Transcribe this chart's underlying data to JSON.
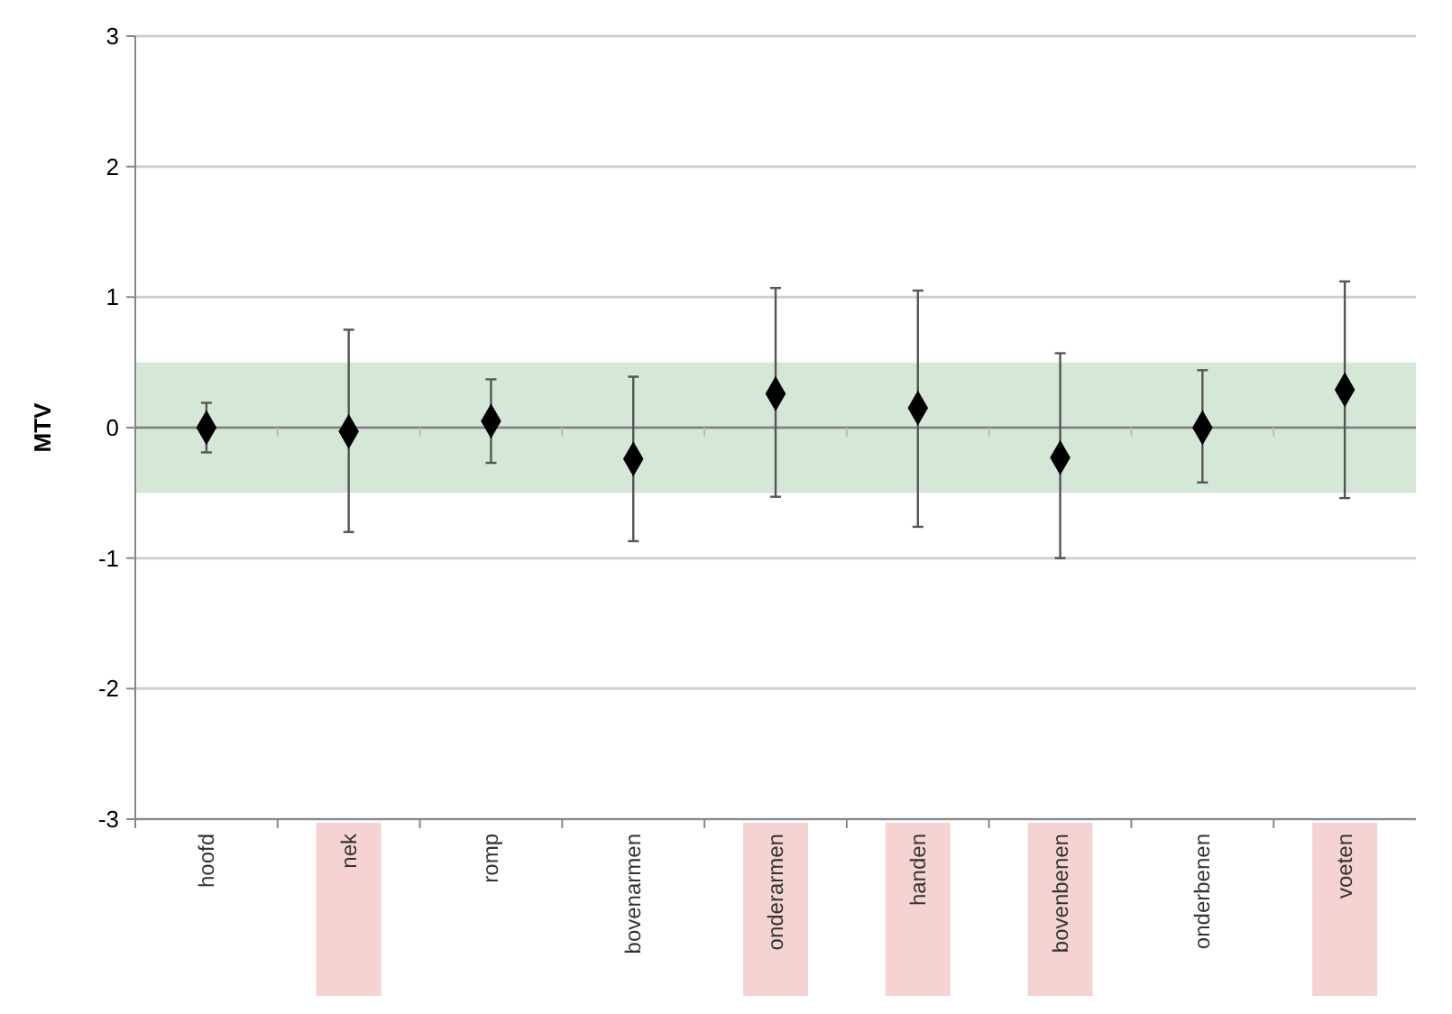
{
  "chart_data": {
    "type": "scatter",
    "ylabel": "MTV",
    "categories": [
      "hoofd",
      "nek",
      "romp",
      "bovenarmen",
      "onderarmen",
      "handen",
      "bovenbenen",
      "onderbenen",
      "voeten"
    ],
    "values": [
      0,
      -0.03,
      0.05,
      -0.24,
      0.26,
      0.15,
      -0.23,
      0,
      0.29
    ],
    "errors": [
      [
        -0.19,
        0.19
      ],
      [
        -0.8,
        0.75
      ],
      [
        -0.27,
        0.37
      ],
      [
        -0.87,
        0.39
      ],
      [
        -0.53,
        1.07
      ],
      [
        -0.76,
        1.05
      ],
      [
        -1.0,
        0.57
      ],
      [
        -0.42,
        0.44
      ],
      [
        -0.54,
        1.12
      ]
    ],
    "color": "#000000",
    "marker": "diamond",
    "ylim": [
      -3,
      3
    ],
    "yticks": [
      -3,
      -2,
      -1,
      0,
      1,
      2,
      3
    ],
    "grid": "y",
    "ref_lines": [
      {
        "axis": "y",
        "value": 0,
        "color": "#7f7f7f"
      }
    ],
    "bands": [
      {
        "axis": "y",
        "from": -0.5,
        "to": 0.5,
        "color": "#d5e8d8"
      }
    ]
  }
}
